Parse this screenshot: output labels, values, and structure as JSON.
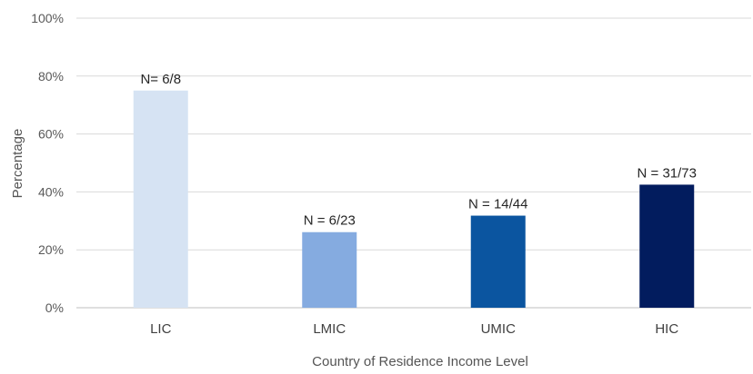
{
  "chart_data": {
    "type": "bar",
    "title": "",
    "xlabel": "Country of Residence Income Level",
    "ylabel": "Percentage",
    "ylim": [
      0,
      100
    ],
    "yticks": [
      "0%",
      "20%",
      "40%",
      "60%",
      "80%",
      "100%"
    ],
    "grid": true,
    "categories": [
      "LIC",
      "LMIC",
      "UMIC",
      "HIC"
    ],
    "values": [
      75,
      26.1,
      31.8,
      42.5
    ],
    "data_labels": [
      "N= 6/8",
      "N = 6/23",
      "N = 14/44",
      "N = 31/73"
    ],
    "colors": [
      "#d6e3f3",
      "#85abe0",
      "#0b55a0",
      "#021c5e"
    ]
  }
}
